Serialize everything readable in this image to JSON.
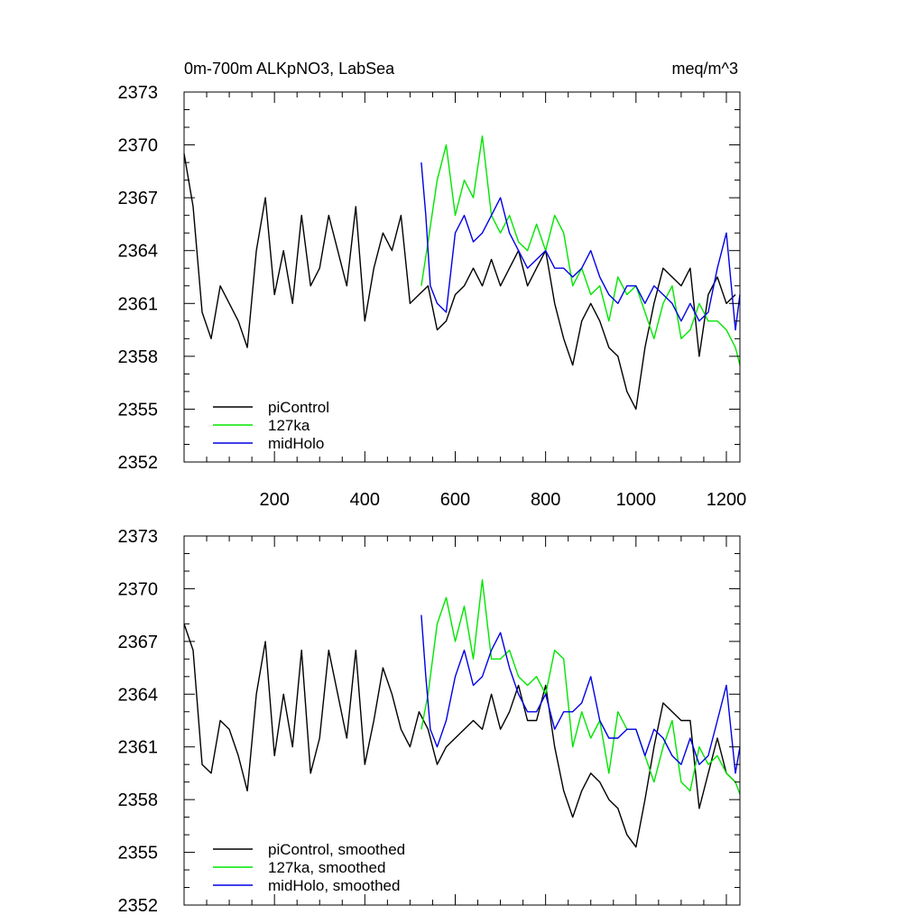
{
  "figure": {
    "title_left": "0m-700m ALKpNO3, LabSea",
    "title_right": "meq/m^3"
  },
  "chart_data": [
    {
      "type": "line",
      "panel": "top",
      "xlim": [
        0,
        1230
      ],
      "ylim": [
        2352,
        2373
      ],
      "yticks": [
        2352,
        2355,
        2358,
        2361,
        2364,
        2367,
        2370,
        2373
      ],
      "xticks": [
        200,
        400,
        600,
        800,
        1000,
        1200
      ],
      "show_xtick_labels": true,
      "legend_position": "bottom-left",
      "series": [
        {
          "name": "piControl",
          "color": "#000000",
          "x": [
            0,
            20,
            40,
            60,
            80,
            100,
            120,
            140,
            160,
            180,
            200,
            220,
            240,
            260,
            280,
            300,
            320,
            340,
            360,
            380,
            400,
            420,
            440,
            460,
            480,
            500,
            520,
            540,
            560,
            580,
            600,
            620,
            640,
            660,
            680,
            700,
            720,
            740,
            760,
            780,
            800,
            820,
            840,
            860,
            880,
            900,
            920,
            940,
            960,
            980,
            1000,
            1020,
            1040,
            1060,
            1080,
            1100,
            1120,
            1140,
            1160,
            1180,
            1200,
            1220
          ],
          "values": [
            2369.5,
            2366.5,
            2360.5,
            2359,
            2362,
            2361,
            2360,
            2358.5,
            2364,
            2367,
            2361.5,
            2364,
            2361,
            2366,
            2362,
            2363,
            2366,
            2364,
            2362,
            2366.5,
            2360,
            2363,
            2365,
            2364,
            2366,
            2361,
            2361.5,
            2362,
            2359.5,
            2360,
            2361.5,
            2362,
            2363,
            2362,
            2363.5,
            2362,
            2363,
            2364,
            2362,
            2363,
            2364,
            2361,
            2359,
            2357.5,
            2360,
            2361,
            2360,
            2358.5,
            2358,
            2356,
            2355,
            2358.5,
            2361,
            2363,
            2362.5,
            2362,
            2363,
            2358,
            2361.5,
            2362.5,
            2361,
            2361.5
          ]
        },
        {
          "name": "127ka",
          "color": "#00e600",
          "x": [
            525,
            540,
            560,
            580,
            600,
            620,
            640,
            660,
            680,
            700,
            720,
            740,
            760,
            780,
            800,
            820,
            840,
            860,
            880,
            900,
            920,
            940,
            960,
            980,
            1000,
            1020,
            1040,
            1060,
            1080,
            1100,
            1120,
            1140,
            1160,
            1180,
            1200,
            1220,
            1230
          ],
          "values": [
            2362,
            2364.5,
            2368,
            2370,
            2366,
            2368,
            2367,
            2370.5,
            2366,
            2365,
            2366,
            2364.5,
            2364,
            2365.5,
            2364,
            2366,
            2365,
            2362,
            2363,
            2361.5,
            2362,
            2360,
            2362.5,
            2361.5,
            2362,
            2360.5,
            2359,
            2361,
            2362,
            2359,
            2359.5,
            2361,
            2360,
            2360,
            2359.5,
            2358.5,
            2357.5
          ]
        },
        {
          "name": "midHolo",
          "color": "#0000e6",
          "x": [
            525,
            535,
            545,
            560,
            580,
            600,
            620,
            640,
            660,
            680,
            700,
            720,
            740,
            760,
            780,
            800,
            820,
            840,
            860,
            880,
            900,
            920,
            940,
            960,
            980,
            1000,
            1020,
            1040,
            1060,
            1080,
            1100,
            1120,
            1140,
            1160,
            1180,
            1200,
            1220,
            1230
          ],
          "values": [
            2369,
            2366,
            2362,
            2361,
            2360.5,
            2365,
            2366,
            2364.5,
            2365,
            2366,
            2367,
            2365,
            2364,
            2363,
            2363.5,
            2364,
            2363,
            2363,
            2362.5,
            2363,
            2364,
            2362.5,
            2361.5,
            2361,
            2362,
            2362,
            2361,
            2362,
            2361.5,
            2361,
            2360,
            2361,
            2360,
            2360.5,
            2363,
            2365,
            2359.5,
            2361.5
          ]
        }
      ]
    },
    {
      "type": "line",
      "panel": "bottom",
      "xlim": [
        0,
        1230
      ],
      "ylim": [
        2352,
        2373
      ],
      "yticks": [
        2352,
        2355,
        2358,
        2361,
        2364,
        2367,
        2370,
        2373
      ],
      "xticks": [
        200,
        400,
        600,
        800,
        1000,
        1200
      ],
      "show_xtick_labels": false,
      "legend_position": "bottom-left",
      "series": [
        {
          "name": "piControl, smoothed",
          "color": "#000000",
          "x": [
            0,
            20,
            40,
            60,
            80,
            100,
            120,
            140,
            160,
            180,
            200,
            220,
            240,
            260,
            280,
            300,
            320,
            340,
            360,
            380,
            400,
            420,
            440,
            460,
            480,
            500,
            520,
            540,
            560,
            580,
            600,
            620,
            640,
            660,
            680,
            700,
            720,
            740,
            760,
            780,
            800,
            820,
            840,
            860,
            880,
            900,
            920,
            940,
            960,
            980,
            1000,
            1020,
            1040,
            1060,
            1080,
            1100,
            1120,
            1140,
            1160,
            1180,
            1200,
            1220
          ],
          "values": [
            2368,
            2366.5,
            2360,
            2359.5,
            2362.5,
            2362,
            2360.5,
            2358.5,
            2364,
            2367,
            2360.5,
            2364,
            2361,
            2366.5,
            2359.5,
            2361.5,
            2366.5,
            2364,
            2361.5,
            2366.5,
            2360,
            2362.5,
            2365.5,
            2364,
            2362,
            2361,
            2363,
            2362,
            2360,
            2361,
            2361.5,
            2362,
            2362.5,
            2362,
            2364,
            2362,
            2363,
            2364.5,
            2362.5,
            2362.5,
            2364.5,
            2361,
            2358.5,
            2357,
            2358.5,
            2359.5,
            2359,
            2358,
            2357.5,
            2356,
            2355.3,
            2358,
            2361,
            2363.5,
            2363,
            2362.5,
            2362.5,
            2357.5,
            2359.5,
            2361.5,
            2359.5,
            2359
          ]
        },
        {
          "name": "127ka, smoothed",
          "color": "#00e600",
          "x": [
            525,
            540,
            560,
            580,
            600,
            620,
            640,
            660,
            680,
            700,
            720,
            740,
            760,
            780,
            800,
            820,
            840,
            860,
            880,
            900,
            920,
            940,
            960,
            980,
            1000,
            1020,
            1040,
            1060,
            1080,
            1100,
            1120,
            1140,
            1160,
            1180,
            1200,
            1220,
            1230
          ],
          "values": [
            2362,
            2364,
            2368,
            2369.5,
            2367,
            2369,
            2366,
            2370.5,
            2366,
            2366,
            2366.5,
            2365,
            2364.5,
            2365,
            2364,
            2366.5,
            2366,
            2361,
            2363,
            2361.5,
            2362.5,
            2359.5,
            2363,
            2362,
            2362,
            2360.5,
            2359,
            2361,
            2362.5,
            2359,
            2358.5,
            2361,
            2360,
            2360.5,
            2359.5,
            2359,
            2358.3
          ]
        },
        {
          "name": "midHolo, smoothed",
          "color": "#0000e6",
          "x": [
            525,
            535,
            545,
            560,
            580,
            600,
            620,
            640,
            660,
            680,
            700,
            720,
            740,
            760,
            780,
            800,
            820,
            840,
            860,
            880,
            900,
            920,
            940,
            960,
            980,
            1000,
            1020,
            1040,
            1060,
            1080,
            1100,
            1120,
            1140,
            1160,
            1180,
            1200,
            1220,
            1230
          ],
          "values": [
            2368.5,
            2365,
            2362,
            2361,
            2362.5,
            2365,
            2366.5,
            2364.5,
            2365,
            2366.5,
            2367.5,
            2365.5,
            2364,
            2363,
            2363,
            2364,
            2362,
            2363,
            2363,
            2363.5,
            2365,
            2362.5,
            2361.5,
            2361.5,
            2362,
            2362,
            2360.5,
            2362,
            2361.5,
            2360.5,
            2360,
            2361.5,
            2360,
            2360.5,
            2362.5,
            2364.5,
            2359.5,
            2361
          ]
        }
      ]
    }
  ]
}
